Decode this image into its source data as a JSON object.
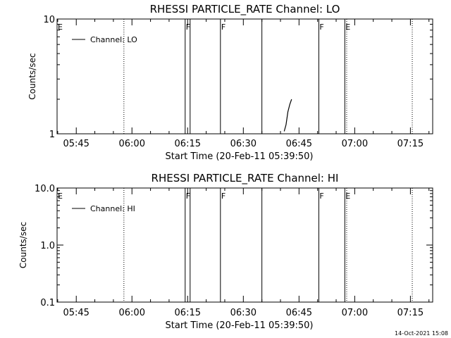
{
  "colors": {
    "background": "#ffffff",
    "foreground": "#000000"
  },
  "chart_data": [
    {
      "type": "line",
      "title": "RHESSI PARTICLE_RATE Channel: LO",
      "xlabel": "Start Time (20-Feb-11 05:39:50)",
      "ylabel": "Counts/sec",
      "y_scale": "log",
      "ylim": [
        1,
        10
      ],
      "y_ticks": [
        "1",
        "10"
      ],
      "xlim": [
        "05:39:50",
        "07:21:00"
      ],
      "x_ticks": [
        "05:45",
        "06:00",
        "06:15",
        "06:30",
        "06:45",
        "07:00",
        "07:15"
      ],
      "legend": {
        "position": "top-left",
        "entries": [
          "Channel: LO"
        ]
      },
      "series": [
        {
          "name": "Channel: LO",
          "x": [
            "06:41:00",
            "06:41:30",
            "06:42:00",
            "06:42:30",
            "06:43:00"
          ],
          "y": [
            1.05,
            1.2,
            1.55,
            1.8,
            2.0
          ]
        }
      ],
      "markers": [
        {
          "time": "05:39:50",
          "label": "E",
          "style": "solid"
        },
        {
          "time": "05:57:50",
          "label": "",
          "style": "dotted"
        },
        {
          "time": "06:14:20",
          "label": "F",
          "style": "solid"
        },
        {
          "time": "06:15:40",
          "label": "",
          "style": "solid"
        },
        {
          "time": "06:23:50",
          "label": "F",
          "style": "solid"
        },
        {
          "time": "06:35:00",
          "label": "",
          "style": "solid"
        },
        {
          "time": "06:50:20",
          "label": "F",
          "style": "solid"
        },
        {
          "time": "06:57:20",
          "label": "E",
          "style": "solid"
        },
        {
          "time": "06:57:50",
          "label": "",
          "style": "dotted"
        },
        {
          "time": "07:15:30",
          "label": "",
          "style": "dotted"
        }
      ]
    },
    {
      "type": "line",
      "title": "RHESSI PARTICLE_RATE Channel: HI",
      "xlabel": "Start Time (20-Feb-11 05:39:50)",
      "ylabel": "Counts/sec",
      "y_scale": "log",
      "ylim": [
        0.1,
        10
      ],
      "y_ticks": [
        "0.1",
        "1.0",
        "10.0"
      ],
      "xlim": [
        "05:39:50",
        "07:21:00"
      ],
      "x_ticks": [
        "05:45",
        "06:00",
        "06:15",
        "06:30",
        "06:45",
        "07:00",
        "07:15"
      ],
      "legend": {
        "position": "top-left",
        "entries": [
          "Channel: HI"
        ]
      },
      "series": [
        {
          "name": "Channel: HI",
          "x": [],
          "y": []
        }
      ],
      "markers": [
        {
          "time": "05:39:50",
          "label": "E",
          "style": "solid"
        },
        {
          "time": "05:57:50",
          "label": "",
          "style": "dotted"
        },
        {
          "time": "06:14:20",
          "label": "F",
          "style": "solid"
        },
        {
          "time": "06:15:40",
          "label": "",
          "style": "solid"
        },
        {
          "time": "06:23:50",
          "label": "F",
          "style": "solid"
        },
        {
          "time": "06:35:00",
          "label": "",
          "style": "solid"
        },
        {
          "time": "06:50:20",
          "label": "F",
          "style": "solid"
        },
        {
          "time": "06:57:20",
          "label": "E",
          "style": "solid"
        },
        {
          "time": "06:57:50",
          "label": "",
          "style": "dotted"
        },
        {
          "time": "07:15:30",
          "label": "",
          "style": "dotted"
        }
      ]
    }
  ],
  "footer": {
    "timestamp": "14-Oct-2021 15:08"
  }
}
